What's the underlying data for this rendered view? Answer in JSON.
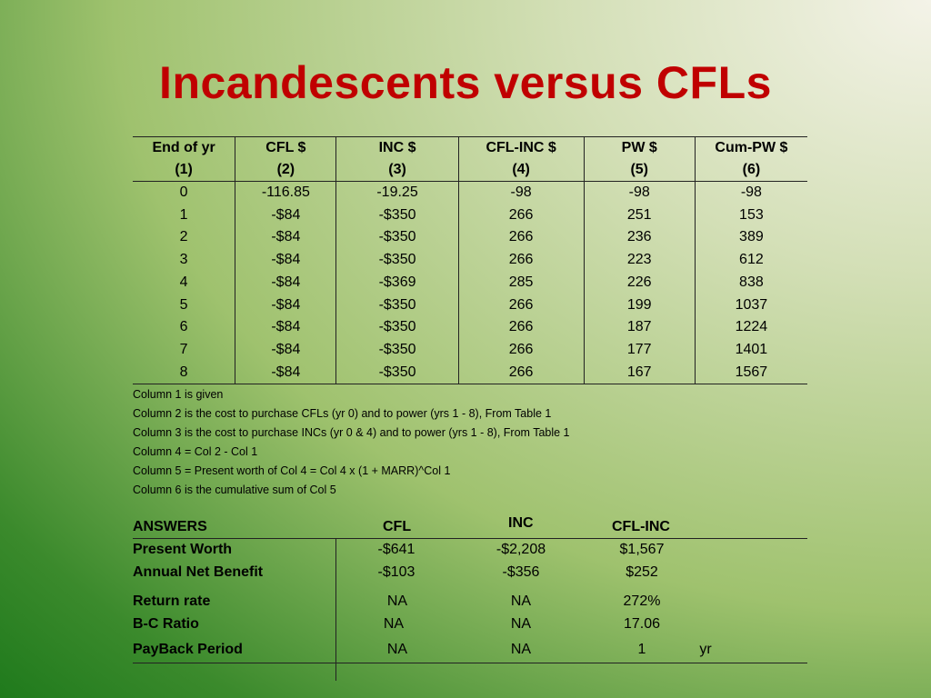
{
  "slide": {
    "title": "Incandescents versus CFLs"
  },
  "table": {
    "headers": [
      {
        "line1": "End of yr",
        "line2": "(1)"
      },
      {
        "line1": "CFL $",
        "line2": "(2)"
      },
      {
        "line1": "INC $",
        "line2": "(3)"
      },
      {
        "line1": "CFL-INC $",
        "line2": "(4)"
      },
      {
        "line1": "PW $",
        "line2": "(5)"
      },
      {
        "line1": "Cum-PW $",
        "line2": "(6)"
      }
    ],
    "rows": [
      [
        "0",
        "-116.85",
        "-19.25",
        "-98",
        "-98",
        "-98"
      ],
      [
        "1",
        "-$84",
        "-$350",
        "266",
        "251",
        "153"
      ],
      [
        "2",
        "-$84",
        "-$350",
        "266",
        "236",
        "389"
      ],
      [
        "3",
        "-$84",
        "-$350",
        "266",
        "223",
        "612"
      ],
      [
        "4",
        "-$84",
        "-$369",
        "285",
        "226",
        "838"
      ],
      [
        "5",
        "-$84",
        "-$350",
        "266",
        "199",
        "1037"
      ],
      [
        "6",
        "-$84",
        "-$350",
        "266",
        "187",
        "1224"
      ],
      [
        "7",
        "-$84",
        "-$350",
        "266",
        "177",
        "1401"
      ],
      [
        "8",
        "-$84",
        "-$350",
        "266",
        "167",
        "1567"
      ]
    ]
  },
  "notes": [
    "Column 1 is given",
    "Column 2 is the cost to purchase CFLs (yr 0) and to power (yrs 1 - 8), From Table 1",
    "Column 3 is the cost to purchase INCs (yr 0 & 4) and to power (yrs 1 - 8), From Table 1",
    "Column 4 = Col 2 - Col 1",
    "Column 5 = Present worth of Col 4 = Col 4 x (1 + MARR)^Col 1",
    "Column 6 is the cumulative sum of Col 5"
  ],
  "answers": {
    "header": {
      "label": "ANSWERS",
      "cfl": "CFL",
      "inc": "INC",
      "diff": "CFL-INC"
    },
    "rows": [
      {
        "label": "Present Worth",
        "cfl": "-$641",
        "inc": "-$2,208",
        "diff": "$1,567"
      },
      {
        "label": "Annual Net Benefit",
        "cfl": "-$103",
        "inc": "-$356",
        "diff": "$252"
      },
      {
        "label": "Return rate",
        "cfl": "NA",
        "inc": "NA",
        "diff": "272%"
      },
      {
        "label": "B-C Ratio",
        "cfl": "NA",
        "inc": "NA",
        "diff": "17.06"
      },
      {
        "label": "PayBack Period",
        "cfl": "NA",
        "inc": "NA",
        "diff": "1",
        "unit": "yr"
      }
    ]
  }
}
